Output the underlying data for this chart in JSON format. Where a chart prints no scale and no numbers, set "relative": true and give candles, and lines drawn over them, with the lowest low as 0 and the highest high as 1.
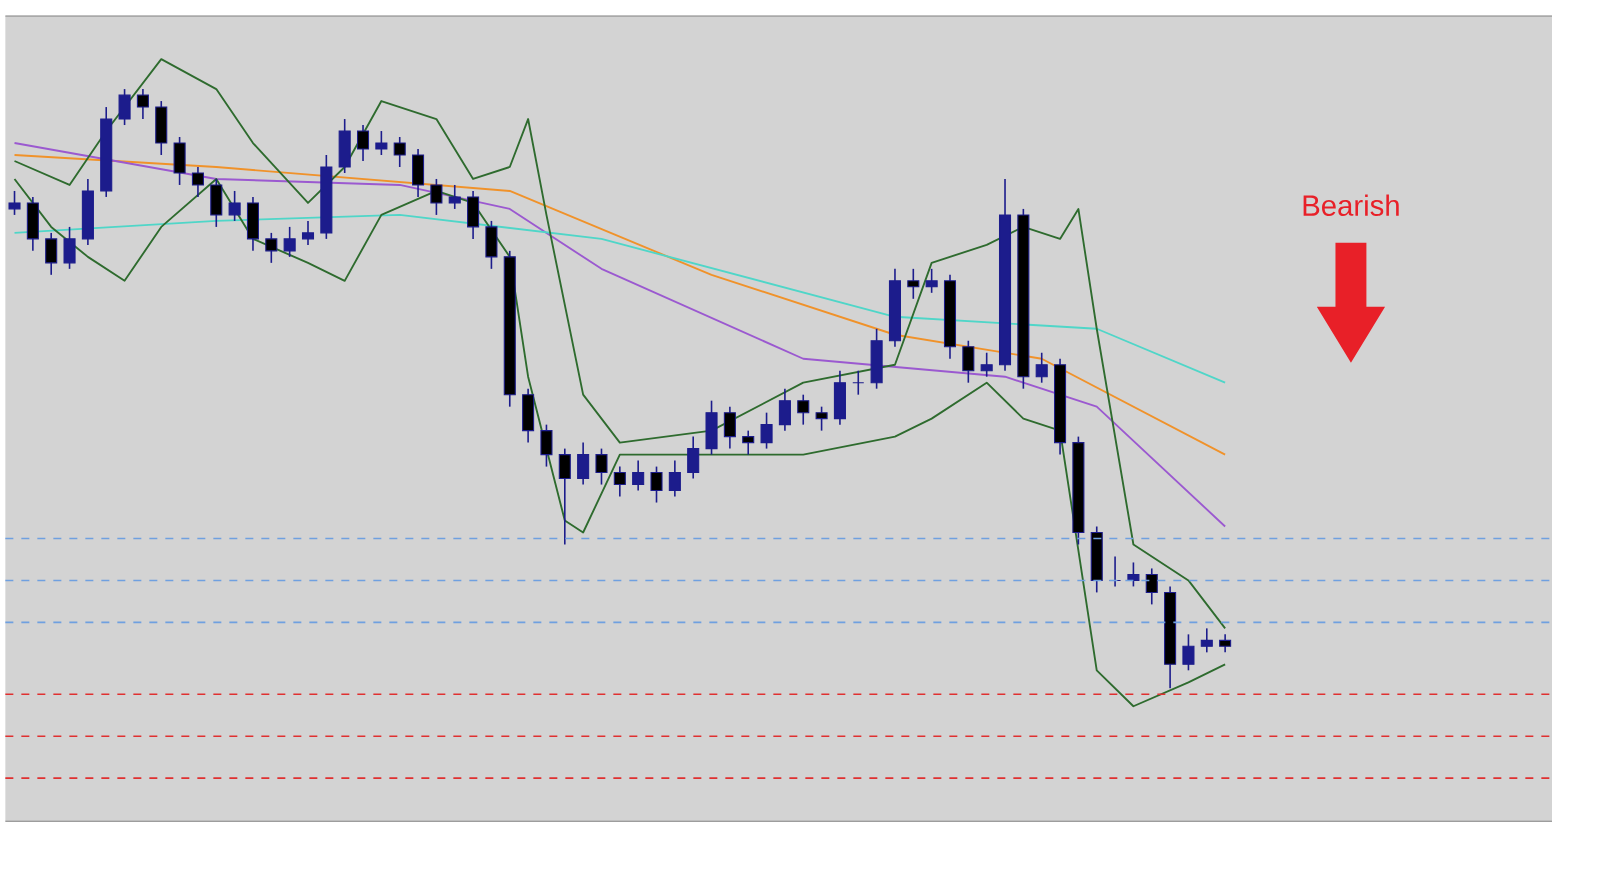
{
  "chart_data": {
    "type": "candlestick",
    "relative": true,
    "color": "#1c1c8c",
    "categories": [
      null,
      null,
      null,
      null,
      null,
      null,
      null,
      null,
      null,
      null,
      null,
      null,
      null,
      null,
      null,
      null,
      null,
      null,
      null,
      null,
      null,
      null,
      null,
      null,
      null,
      null,
      null,
      null,
      null,
      null,
      null,
      null,
      null,
      null,
      null,
      null,
      null,
      null,
      null,
      null,
      null,
      null,
      null,
      null,
      null,
      null,
      null,
      null,
      null,
      null,
      null,
      null,
      null,
      null,
      null,
      null,
      null,
      null,
      null,
      null,
      null,
      null,
      null,
      null,
      null,
      null,
      null
    ],
    "ohlc": [
      [
        0.8,
        0.83,
        0.79,
        0.81
      ],
      [
        0.81,
        0.82,
        0.73,
        0.75
      ],
      [
        0.75,
        0.76,
        0.69,
        0.71
      ],
      [
        0.71,
        0.77,
        0.7,
        0.75
      ],
      [
        0.75,
        0.85,
        0.74,
        0.83
      ],
      [
        0.83,
        0.97,
        0.82,
        0.95
      ],
      [
        0.95,
        1.0,
        0.94,
        0.99
      ],
      [
        0.99,
        1.0,
        0.95,
        0.97
      ],
      [
        0.97,
        0.98,
        0.89,
        0.91
      ],
      [
        0.91,
        0.92,
        0.84,
        0.86
      ],
      [
        0.86,
        0.87,
        0.82,
        0.84
      ],
      [
        0.84,
        0.85,
        0.77,
        0.79
      ],
      [
        0.79,
        0.83,
        0.78,
        0.81
      ],
      [
        0.81,
        0.82,
        0.73,
        0.75
      ],
      [
        0.75,
        0.76,
        0.71,
        0.73
      ],
      [
        0.73,
        0.77,
        0.72,
        0.75
      ],
      [
        0.75,
        0.78,
        0.74,
        0.76
      ],
      [
        0.76,
        0.89,
        0.75,
        0.87
      ],
      [
        0.87,
        0.95,
        0.86,
        0.93
      ],
      [
        0.93,
        0.94,
        0.88,
        0.9
      ],
      [
        0.9,
        0.93,
        0.89,
        0.91
      ],
      [
        0.91,
        0.92,
        0.87,
        0.89
      ],
      [
        0.89,
        0.9,
        0.82,
        0.84
      ],
      [
        0.84,
        0.85,
        0.79,
        0.81
      ],
      [
        0.81,
        0.84,
        0.8,
        0.82
      ],
      [
        0.82,
        0.83,
        0.75,
        0.77
      ],
      [
        0.77,
        0.78,
        0.7,
        0.72
      ],
      [
        0.72,
        0.73,
        0.47,
        0.49
      ],
      [
        0.49,
        0.5,
        0.41,
        0.43
      ],
      [
        0.43,
        0.44,
        0.37,
        0.39
      ],
      [
        0.39,
        0.4,
        0.24,
        0.35
      ],
      [
        0.35,
        0.41,
        0.34,
        0.39
      ],
      [
        0.39,
        0.4,
        0.34,
        0.36
      ],
      [
        0.36,
        0.37,
        0.32,
        0.34
      ],
      [
        0.34,
        0.38,
        0.33,
        0.36
      ],
      [
        0.36,
        0.37,
        0.31,
        0.33
      ],
      [
        0.33,
        0.38,
        0.32,
        0.36
      ],
      [
        0.36,
        0.42,
        0.35,
        0.4
      ],
      [
        0.4,
        0.48,
        0.39,
        0.46
      ],
      [
        0.46,
        0.47,
        0.4,
        0.42
      ],
      [
        0.42,
        0.43,
        0.39,
        0.41
      ],
      [
        0.41,
        0.46,
        0.4,
        0.44
      ],
      [
        0.44,
        0.5,
        0.43,
        0.48
      ],
      [
        0.48,
        0.49,
        0.44,
        0.46
      ],
      [
        0.46,
        0.47,
        0.43,
        0.45
      ],
      [
        0.45,
        0.53,
        0.44,
        0.51
      ],
      [
        0.51,
        0.53,
        0.49,
        0.51
      ],
      [
        0.51,
        0.6,
        0.5,
        0.58
      ],
      [
        0.58,
        0.7,
        0.57,
        0.68
      ],
      [
        0.68,
        0.7,
        0.65,
        0.67
      ],
      [
        0.67,
        0.7,
        0.66,
        0.68
      ],
      [
        0.68,
        0.69,
        0.55,
        0.57
      ],
      [
        0.57,
        0.58,
        0.51,
        0.53
      ],
      [
        0.53,
        0.56,
        0.52,
        0.54
      ],
      [
        0.54,
        0.85,
        0.53,
        0.79
      ],
      [
        0.79,
        0.8,
        0.5,
        0.52
      ],
      [
        0.52,
        0.56,
        0.51,
        0.54
      ],
      [
        0.54,
        0.55,
        0.39,
        0.41
      ],
      [
        0.41,
        0.42,
        0.24,
        0.26
      ],
      [
        0.26,
        0.27,
        0.16,
        0.18
      ],
      [
        0.18,
        0.22,
        0.17,
        0.18
      ],
      [
        0.18,
        0.21,
        0.17,
        0.19
      ],
      [
        0.19,
        0.2,
        0.14,
        0.16
      ],
      [
        0.16,
        0.17,
        0.0,
        0.04
      ],
      [
        0.04,
        0.09,
        0.03,
        0.07
      ],
      [
        0.07,
        0.1,
        0.06,
        0.08
      ],
      [
        0.08,
        0.09,
        0.06,
        0.07
      ]
    ],
    "series": [
      {
        "type": "line",
        "color": "#f0922a",
        "values": [
          0.89,
          null,
          null,
          null,
          null,
          null,
          null,
          null,
          null,
          null,
          null,
          0.87,
          null,
          null,
          null,
          null,
          null,
          null,
          null,
          null,
          null,
          null,
          null,
          null,
          null,
          null,
          null,
          0.83,
          null,
          null,
          null,
          null,
          null,
          null,
          null,
          null,
          null,
          null,
          0.69,
          null,
          null,
          null,
          null,
          null,
          null,
          null,
          null,
          null,
          0.59,
          null,
          null,
          null,
          null,
          null,
          null,
          null,
          0.55,
          null,
          null,
          null,
          null,
          null,
          null,
          null,
          null,
          null,
          0.39
        ]
      },
      {
        "type": "line",
        "color": "#9b59d0",
        "values": [
          0.91,
          null,
          null,
          null,
          null,
          null,
          null,
          null,
          null,
          null,
          null,
          0.85,
          null,
          null,
          null,
          null,
          null,
          null,
          null,
          null,
          null,
          0.84,
          null,
          null,
          null,
          null,
          null,
          0.8,
          null,
          null,
          null,
          null,
          0.7,
          null,
          null,
          null,
          null,
          null,
          null,
          null,
          null,
          null,
          null,
          0.55,
          null,
          null,
          null,
          null,
          null,
          null,
          null,
          null,
          null,
          null,
          0.52,
          null,
          null,
          null,
          null,
          0.47,
          null,
          null,
          null,
          null,
          null,
          null,
          0.27
        ]
      },
      {
        "type": "line",
        "color": "#4fd6c8",
        "values": [
          0.76,
          null,
          null,
          null,
          null,
          null,
          null,
          null,
          null,
          null,
          null,
          0.78,
          null,
          null,
          null,
          null,
          null,
          null,
          null,
          null,
          null,
          0.79,
          null,
          null,
          null,
          null,
          null,
          null,
          null,
          null,
          null,
          null,
          0.75,
          null,
          null,
          null,
          null,
          null,
          null,
          null,
          null,
          null,
          null,
          null,
          null,
          null,
          null,
          null,
          0.62,
          null,
          null,
          null,
          null,
          null,
          null,
          null,
          null,
          null,
          null,
          0.6,
          null,
          null,
          null,
          null,
          null,
          null,
          0.51
        ]
      },
      {
        "type": "line",
        "color": "#2e6b2e",
        "values": [
          0.88,
          null,
          null,
          0.84,
          null,
          0.93,
          null,
          null,
          1.05,
          null,
          null,
          1.0,
          null,
          0.91,
          null,
          null,
          0.81,
          null,
          0.87,
          null,
          0.98,
          null,
          null,
          0.95,
          null,
          0.85,
          null,
          0.87,
          0.95,
          0.79,
          null,
          0.49,
          null,
          0.41,
          null,
          null,
          null,
          null,
          0.43,
          null,
          null,
          null,
          null,
          0.51,
          null,
          null,
          null,
          null,
          0.54,
          null,
          0.71,
          null,
          null,
          0.74,
          null,
          0.77,
          null,
          0.75,
          0.8,
          0.6,
          null,
          0.24,
          null,
          null,
          0.18,
          null,
          0.1
        ]
      },
      {
        "type": "line",
        "color": "#2e6b2e",
        "values": [
          0.85,
          null,
          0.77,
          null,
          0.72,
          null,
          0.68,
          null,
          0.77,
          null,
          null,
          0.85,
          null,
          0.75,
          null,
          null,
          0.71,
          null,
          0.68,
          null,
          0.79,
          null,
          null,
          0.83,
          null,
          0.81,
          null,
          0.72,
          0.52,
          null,
          0.28,
          0.26,
          null,
          0.39,
          null,
          null,
          null,
          null,
          0.39,
          null,
          null,
          null,
          null,
          0.39,
          null,
          null,
          null,
          null,
          0.42,
          null,
          0.45,
          null,
          null,
          0.51,
          null,
          0.45,
          null,
          0.43,
          null,
          0.03,
          null,
          -0.03,
          null,
          null,
          0.01,
          null,
          0.04
        ]
      }
    ],
    "ref_lines": [
      {
        "axis": "y",
        "value": 0.25,
        "color": "#6fa0e0",
        "line_style": "dashed"
      },
      {
        "axis": "y",
        "value": 0.18,
        "color": "#6fa0e0",
        "line_style": "dashed"
      },
      {
        "axis": "y",
        "value": 0.11,
        "color": "#6fa0e0",
        "line_style": "dashed"
      },
      {
        "axis": "y",
        "value": -0.01,
        "color": "#e03030",
        "line_style": "dashed"
      },
      {
        "axis": "y",
        "value": -0.08,
        "color": "#e03030",
        "line_style": "dashed"
      },
      {
        "axis": "y",
        "value": -0.15,
        "color": "#e03030",
        "line_style": "dashed"
      }
    ],
    "annotations": [
      "Bearish"
    ]
  }
}
